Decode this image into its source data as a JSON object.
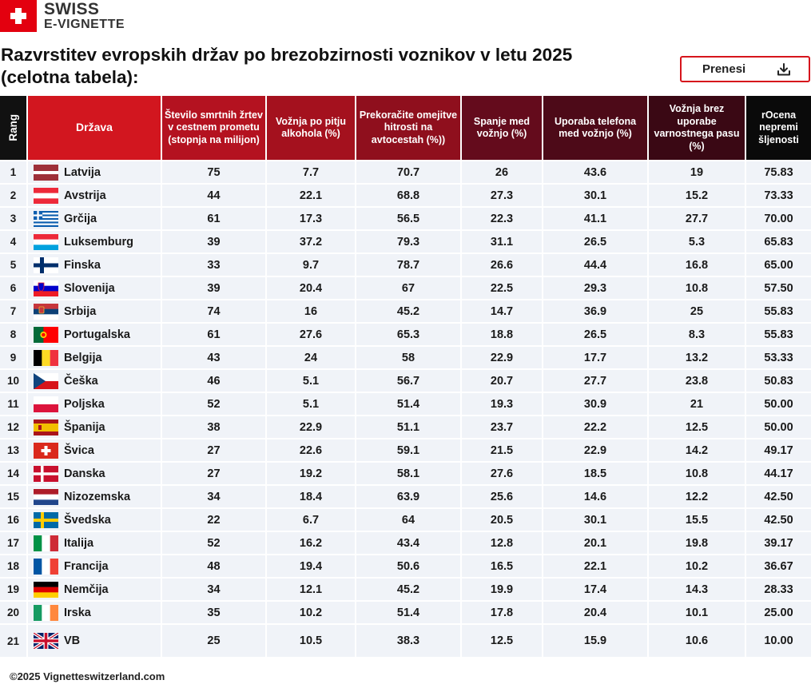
{
  "logo": {
    "line1": "SWISS",
    "line2": "E-VIGNETTE"
  },
  "title": "Razvrstitev evropskih držav po brezobzirnosti voznikov v letu 2025 (celotna tabela):",
  "download_button": {
    "label": "Prenesi",
    "icon": "download-icon"
  },
  "table": {
    "headers": [
      "Rang",
      "Država",
      "Število smrtnih žrtev v cestnem prometu (stopnja na milijon)",
      "Vožnja po pitju alkohola (%)",
      "Prekoračite omejitve hitrosti na avtocestah (%))",
      "Spanje med vožnjo  (%)",
      "Uporaba telefona med vožnjo (%)",
      "Vožnja brez uporabe varnostnega pasu (%)",
      "rOcena nepremi šljenosti"
    ],
    "header_colors": [
      "#111111",
      "#d2161f",
      "#b41220",
      "#a4111e",
      "#8f0f1d",
      "#640b1c",
      "#4d0a18",
      "#3a0814",
      "#0a0a0a"
    ],
    "rows": [
      {
        "rank": "1",
        "country": "Latvija",
        "flag": "latvia-flag",
        "values": [
          "75",
          "7.7",
          "70.7",
          "26",
          "43.6",
          "19",
          "75.83"
        ]
      },
      {
        "rank": "2",
        "country": "Avstrija",
        "flag": "austria-flag",
        "values": [
          "44",
          "22.1",
          "68.8",
          "27.3",
          "30.1",
          "15.2",
          "73.33"
        ]
      },
      {
        "rank": "3",
        "country": "Grčija",
        "flag": "greece-flag",
        "values": [
          "61",
          "17.3",
          "56.5",
          "22.3",
          "41.1",
          "27.7",
          "70.00"
        ]
      },
      {
        "rank": "4",
        "country": "Luksemburg",
        "flag": "luxembourg-flag",
        "values": [
          "39",
          "37.2",
          "79.3",
          "31.1",
          "26.5",
          "5.3",
          "65.83"
        ]
      },
      {
        "rank": "5",
        "country": "Finska",
        "flag": "finland-flag",
        "values": [
          "33",
          "9.7",
          "78.7",
          "26.6",
          "44.4",
          "16.8",
          "65.00"
        ]
      },
      {
        "rank": "6",
        "country": "Slovenija",
        "flag": "slovenia-flag",
        "values": [
          "39",
          "20.4",
          "67",
          "22.5",
          "29.3",
          "10.8",
          "57.50"
        ]
      },
      {
        "rank": "7",
        "country": "Srbija",
        "flag": "serbia-flag",
        "values": [
          "74",
          "16",
          "45.2",
          "14.7",
          "36.9",
          "25",
          "55.83"
        ]
      },
      {
        "rank": "8",
        "country": "Portugalska",
        "flag": "portugal-flag",
        "values": [
          "61",
          "27.6",
          "65.3",
          "18.8",
          "26.5",
          "8.3",
          "55.83"
        ]
      },
      {
        "rank": "9",
        "country": "Belgija",
        "flag": "belgium-flag",
        "values": [
          "43",
          "24",
          "58",
          "22.9",
          "17.7",
          "13.2",
          "53.33"
        ]
      },
      {
        "rank": "10",
        "country": "Češka",
        "flag": "czechia-flag",
        "values": [
          "46",
          "5.1",
          "56.7",
          "20.7",
          "27.7",
          "23.8",
          "50.83"
        ]
      },
      {
        "rank": "11",
        "country": "Poljska",
        "flag": "poland-flag",
        "values": [
          "52",
          "5.1",
          "51.4",
          "19.3",
          "30.9",
          "21",
          "50.00"
        ]
      },
      {
        "rank": "12",
        "country": "Španija",
        "flag": "spain-flag",
        "values": [
          "38",
          "22.9",
          "51.1",
          "23.7",
          "22.2",
          "12.5",
          "50.00"
        ]
      },
      {
        "rank": "13",
        "country": "Švica",
        "flag": "switzerland-flag",
        "values": [
          "27",
          "22.6",
          "59.1",
          "21.5",
          "22.9",
          "14.2",
          "49.17"
        ]
      },
      {
        "rank": "14",
        "country": "Danska",
        "flag": "denmark-flag",
        "values": [
          "27",
          "19.2",
          "58.1",
          "27.6",
          "18.5",
          "10.8",
          "44.17"
        ]
      },
      {
        "rank": "15",
        "country": "Nizozemska",
        "flag": "netherlands-flag",
        "values": [
          "34",
          "18.4",
          "63.9",
          "25.6",
          "14.6",
          "12.2",
          "42.50"
        ]
      },
      {
        "rank": "16",
        "country": "Švedska",
        "flag": "sweden-flag",
        "values": [
          "22",
          "6.7",
          "64",
          "20.5",
          "30.1",
          "15.5",
          "42.50"
        ]
      },
      {
        "rank": "17",
        "country": "Italija",
        "flag": "italy-flag",
        "values": [
          "52",
          "16.2",
          "43.4",
          "12.8",
          "20.1",
          "19.8",
          "39.17"
        ]
      },
      {
        "rank": "18",
        "country": "Francija",
        "flag": "france-flag",
        "values": [
          "48",
          "19.4",
          "50.6",
          "16.5",
          "22.1",
          "10.2",
          "36.67"
        ]
      },
      {
        "rank": "19",
        "country": "Nemčija",
        "flag": "germany-flag",
        "values": [
          "34",
          "12.1",
          "45.2",
          "19.9",
          "17.4",
          "14.3",
          "28.33"
        ]
      },
      {
        "rank": "20",
        "country": "Irska",
        "flag": "ireland-flag",
        "values": [
          "35",
          "10.2",
          "51.4",
          "17.8",
          "20.4",
          "10.1",
          "25.00"
        ]
      },
      {
        "rank": "21",
        "country": "VB",
        "flag": "uk-flag",
        "values": [
          "25",
          "10.5",
          "38.3",
          "12.5",
          "15.9",
          "10.6",
          "10.00"
        ]
      }
    ]
  },
  "footer": "©2025 Vignetteswitzerland.com"
}
